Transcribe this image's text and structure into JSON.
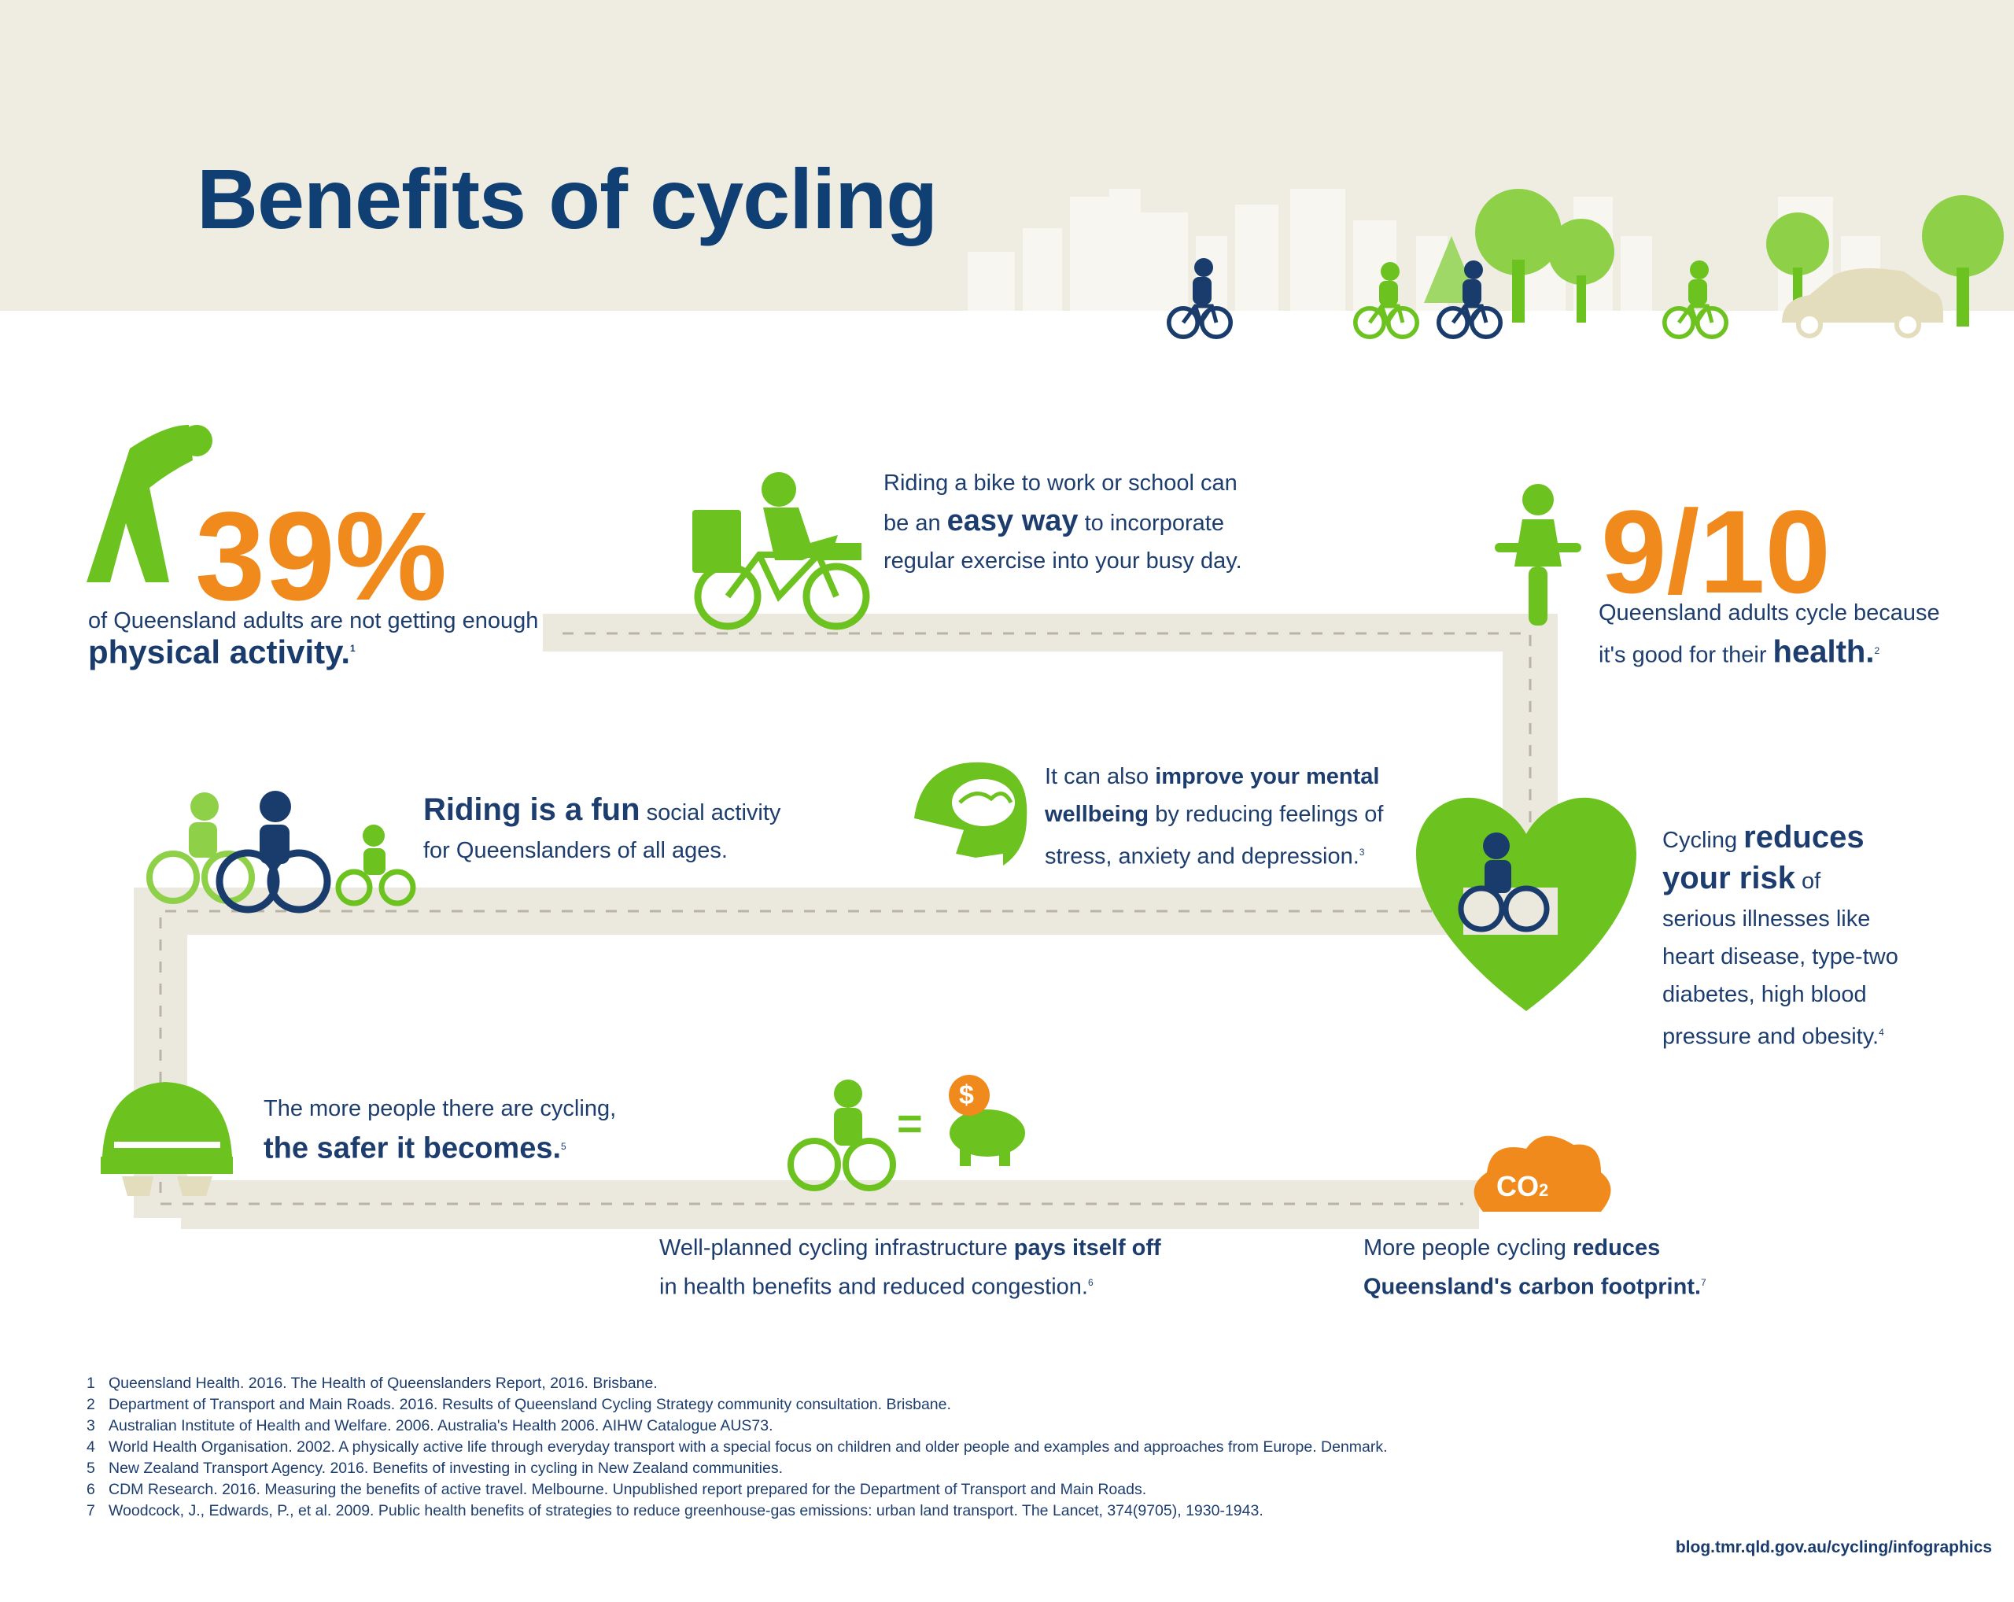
{
  "title": "Benefits of cycling",
  "colors": {
    "navy": "#1a3c6c",
    "green": "#6cc21f",
    "orange": "#f18a1c",
    "beige": "#efede2",
    "path": "#ebe8dd"
  },
  "stat_physical": {
    "value": "39%",
    "text": "of Queensland adults are not getting enough",
    "bold": "physical activity.",
    "ref": "1"
  },
  "easy_way": {
    "line1": "Riding a bike to work or school can",
    "pre": "be an ",
    "bold": "easy way",
    "post": " to incorporate",
    "line3": "regular exercise into your busy day."
  },
  "stat_health": {
    "value": "9/10",
    "line1": "Queensland adults cycle because",
    "pre": "it's good for their ",
    "bold": "health.",
    "ref": "2"
  },
  "fun": {
    "bold": "Riding is a fun",
    "post": " social activity",
    "line2": "for Queenslanders of all ages."
  },
  "mental": {
    "pre": "It can also ",
    "bold1": "improve your mental",
    "bold2": "wellbeing",
    "post": " by reducing feelings of",
    "line3": "stress, anxiety and depression.",
    "ref": "3"
  },
  "risk": {
    "pre": "Cycling ",
    "bold1": "reduces",
    "bold2": "your risk",
    "post": " of",
    "line3": "serious illnesses like",
    "line4": "heart disease, type-two",
    "line5": "diabetes, high blood",
    "line6": "pressure and obesity.",
    "ref": "4"
  },
  "safer": {
    "line1": "The more people there are cycling,",
    "bold": "the safer it becomes.",
    "ref": "5"
  },
  "pays": {
    "pre": "Well-planned cycling infrastructure ",
    "bold": "pays itself off",
    "line2": "in health benefits and reduced congestion.",
    "ref": "6"
  },
  "carbon": {
    "pre": "More people cycling ",
    "bold1": "reduces",
    "bold2": "Queensland's carbon footprint.",
    "ref": "7"
  },
  "icons": {
    "equals": "=",
    "dollar": "$",
    "co2": "CO",
    "co2_sub": "2"
  },
  "references": [
    {
      "n": "1",
      "text": "Queensland Health. 2016. The Health of Queenslanders Report, 2016. Brisbane."
    },
    {
      "n": "2",
      "text": "Department of Transport and Main Roads. 2016. Results of Queensland Cycling Strategy community consultation. Brisbane."
    },
    {
      "n": "3",
      "text": "Australian Institute of Health and Welfare. 2006. Australia's Health 2006. AIHW Catalogue AUS73."
    },
    {
      "n": "4",
      "text": "World Health Organisation. 2002. A physically active life through everyday transport with a special focus on children and older people and examples and approaches from Europe. Denmark."
    },
    {
      "n": "5",
      "text": "New Zealand Transport Agency. 2016. Benefits of investing in cycling in New Zealand communities."
    },
    {
      "n": "6",
      "text": "CDM Research. 2016. Measuring the benefits of active travel. Melbourne. Unpublished report prepared for the Department of Transport and Main Roads."
    },
    {
      "n": "7",
      "text": "Woodcock, J., Edwards, P., et al. 2009. Public health benefits of strategies to reduce greenhouse-gas emissions: urban land transport. The Lancet, 374(9705), 1930-1943."
    }
  ],
  "source_url": "blog.tmr.qld.gov.au/cycling/infographics"
}
